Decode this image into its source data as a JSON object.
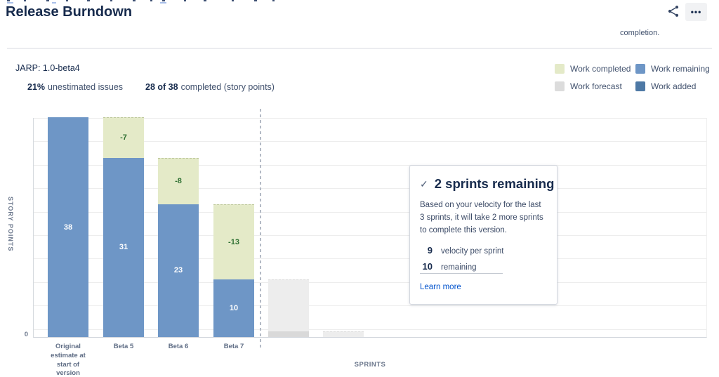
{
  "header": {
    "title": "Release Burndown",
    "more_label": "•••",
    "description_tail": "completion."
  },
  "version": {
    "label": "JARP: 1.0-beta4",
    "stats": [
      {
        "value": "21%",
        "label": "unestimated issues"
      },
      {
        "value": "28 of 38",
        "label": "completed (story points)"
      }
    ]
  },
  "legend": {
    "items": [
      {
        "label": "Work completed",
        "color": "#e4eac8"
      },
      {
        "label": "Work remaining",
        "color": "#6e96c6"
      },
      {
        "label": "Work forecast",
        "color": "#dcdcdc"
      },
      {
        "label": "Work added",
        "color": "#4e79a5"
      }
    ]
  },
  "chart_data": {
    "type": "bar",
    "stacked": true,
    "title": "Release Burndown",
    "xlabel": "SPRINTS",
    "ylabel": "STORY POINTS",
    "ylim": [
      0,
      38
    ],
    "visible_y_tick_labels": [
      "0"
    ],
    "grid": true,
    "legend_entries": [
      "Work completed",
      "Work remaining",
      "Work forecast",
      "Work added"
    ],
    "colors": {
      "remaining": "#6e96c6",
      "completed": "#e4eac8",
      "forecast": "#ededed",
      "forecast_remaining": "#d9d9d9"
    },
    "forecast_divider_after_index": 3,
    "bars": [
      {
        "category": "Original estimate at start of version",
        "forecast": false,
        "segments": [
          {
            "type": "remaining",
            "value": 38,
            "label": "38"
          }
        ]
      },
      {
        "category": "Beta 5",
        "forecast": false,
        "segments": [
          {
            "type": "completed",
            "value": 7,
            "label": "-7"
          },
          {
            "type": "remaining",
            "value": 31,
            "label": "31"
          }
        ]
      },
      {
        "category": "Beta 6",
        "forecast": false,
        "segments": [
          {
            "type": "completed",
            "value": 8,
            "label": "-8"
          },
          {
            "type": "remaining",
            "value": 23,
            "label": "23"
          }
        ]
      },
      {
        "category": "Beta 7",
        "forecast": false,
        "segments": [
          {
            "type": "completed",
            "value": 13,
            "label": "-13"
          },
          {
            "type": "remaining",
            "value": 10,
            "label": "10"
          }
        ]
      },
      {
        "category": "",
        "forecast": true,
        "segments": [
          {
            "type": "forecast",
            "value": 9
          },
          {
            "type": "forecast_remaining",
            "value": 1
          }
        ]
      },
      {
        "category": "",
        "forecast": true,
        "segments": [
          {
            "type": "forecast",
            "value": 1
          }
        ]
      }
    ]
  },
  "insight": {
    "check": "✓",
    "heading": "2 sprints remaining",
    "body": "Based on your velocity for the last 3 sprints, it will take 2 more sprints to complete this version.",
    "metrics": [
      {
        "value": "9",
        "label": "velocity per sprint"
      },
      {
        "value": "10",
        "label": "remaining"
      }
    ],
    "link_label": "Learn more"
  }
}
